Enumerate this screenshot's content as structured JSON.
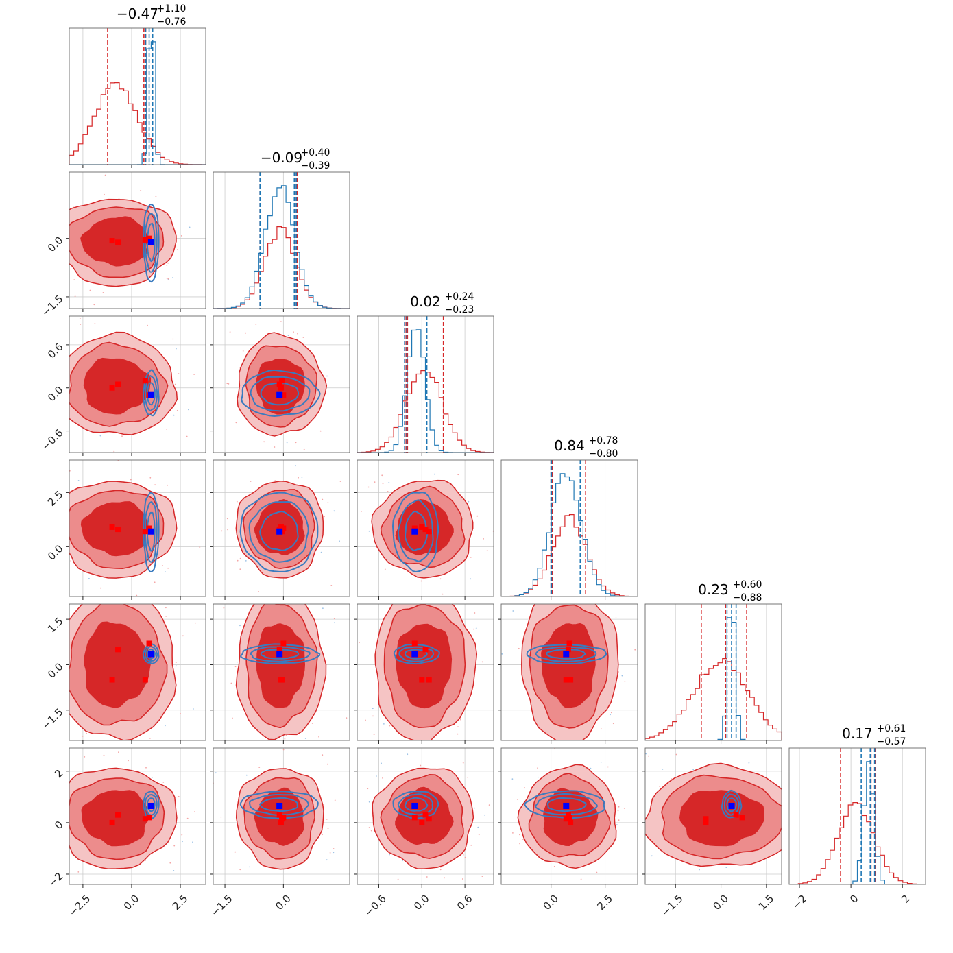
{
  "chart_data": {
    "type": "corner",
    "n_params": 6,
    "colors": {
      "red": "#d62728",
      "blue": "#1f77b4",
      "red_marker": "#ff0000",
      "blue_marker": "#0000ff",
      "grid": "#cccccc"
    },
    "params": [
      {
        "title_main": "−0.47",
        "title_sup": "+1.10",
        "title_sub": "−0.76",
        "range": [
          -3.2,
          3.8
        ],
        "ticks": [
          -2.5,
          0.0,
          2.5
        ],
        "tick_labels": [
          "−2.5",
          "0.0",
          "2.5"
        ],
        "red": {
          "mean": -0.8,
          "sd": 1.1
        },
        "blue": {
          "mean": 1.0,
          "sd": 0.15
        },
        "red_q": [
          -1.23,
          0.63,
          0.72
        ],
        "blue_q": [
          0.72,
          0.9,
          1.08
        ]
      },
      {
        "title_main": "−0.09",
        "title_sup": "+0.40",
        "title_sub": "−0.39",
        "range": [
          -1.8,
          1.7
        ],
        "ticks": [
          -1.5,
          0.0
        ],
        "tick_labels": [
          "−1.5",
          "0.0"
        ],
        "red": {
          "mean": -0.08,
          "sd": 0.4
        },
        "blue": {
          "mean": -0.1,
          "sd": 0.38
        },
        "red_q": [
          -0.6,
          0.3,
          0.35
        ],
        "blue_q": [
          -0.6,
          0.28,
          0.33
        ]
      },
      {
        "title_main": "0.02",
        "title_sup": "+0.24",
        "title_sub": "−0.23",
        "range": [
          -0.9,
          1.0
        ],
        "ticks": [
          -0.6,
          0.0,
          0.6
        ],
        "tick_labels": [
          "−0.6",
          "0.0",
          "0.6"
        ],
        "red": {
          "mean": 0.03,
          "sd": 0.25
        },
        "blue": {
          "mean": -0.08,
          "sd": 0.12
        },
        "red_q": [
          -0.22,
          -0.2,
          0.3
        ],
        "blue_q": [
          -0.24,
          -0.21,
          0.07
        ]
      },
      {
        "title_main": "0.84",
        "title_sup": "+0.78",
        "title_sub": "−0.80",
        "range": [
          -2.3,
          4.0
        ],
        "ticks": [
          0.0,
          2.5
        ],
        "tick_labels": [
          "0.0",
          "2.5"
        ],
        "red": {
          "mean": 0.84,
          "sd": 0.8
        },
        "blue": {
          "mean": 0.7,
          "sd": 0.7
        },
        "red_q": [
          0.0,
          0.05,
          1.6
        ],
        "blue_q": [
          0.0,
          0.02,
          1.35
        ]
      },
      {
        "title_main": "0.23",
        "title_sup": "+0.60",
        "title_sub": "−0.88",
        "range": [
          -2.5,
          2.0
        ],
        "ticks": [
          -1.5,
          0.0,
          1.5
        ],
        "tick_labels": [
          "−1.5",
          "0.0",
          "1.5"
        ],
        "red": {
          "mean": 0.0,
          "sd": 0.9
        },
        "blue": {
          "mean": 0.35,
          "sd": 0.12
        },
        "red_q": [
          -0.65,
          0.15,
          0.85
        ],
        "blue_q": [
          0.2,
          0.35,
          0.5
        ]
      },
      {
        "title_main": "0.17",
        "title_sup": "+0.61",
        "title_sub": "−0.57",
        "range": [
          -2.4,
          2.9
        ],
        "ticks": [
          -2,
          0,
          2
        ],
        "tick_labels": [
          "−2",
          "0",
          "2"
        ],
        "red": {
          "mean": 0.2,
          "sd": 0.7
        },
        "blue": {
          "mean": 0.7,
          "sd": 0.2
        },
        "red_q": [
          -0.4,
          0.78,
          0.95
        ],
        "blue_q": [
          0.4,
          0.75,
          0.92
        ]
      }
    ],
    "truth_blue": [
      1.0,
      -0.1,
      -0.1,
      0.7,
      0.35,
      0.65
    ],
    "truth_red": [
      [
        -1.0,
        -0.06,
        0.0,
        0.9,
        -0.5,
        0.0
      ],
      [
        -0.7,
        -0.1,
        0.05,
        0.8,
        0.5,
        0.3
      ],
      [
        0.7,
        -0.04,
        0.1,
        0.7,
        -0.5,
        0.15
      ],
      [
        0.9,
        0.0,
        -0.1,
        0.85,
        0.7,
        0.2
      ]
    ]
  }
}
